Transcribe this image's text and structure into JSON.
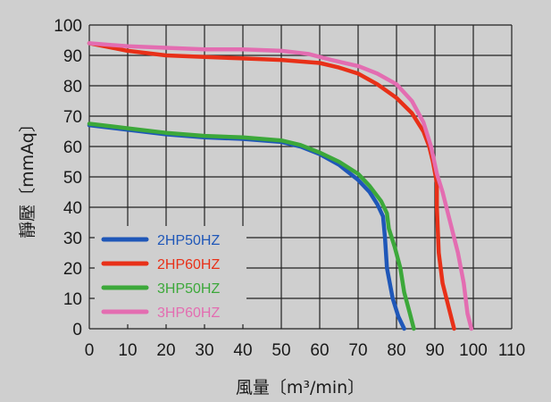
{
  "chart_data": {
    "type": "line",
    "title": "",
    "xlabel": "風量〔m³/min〕",
    "ylabel": "靜壓〔mmAq〕",
    "xlim": [
      0,
      110
    ],
    "ylim": [
      0,
      100
    ],
    "x_ticks": [
      "0",
      "10",
      "20",
      "30",
      "40",
      "50",
      "60",
      "70",
      "80",
      "90",
      "100",
      "110"
    ],
    "y_ticks": [
      "0",
      "10",
      "20",
      "30",
      "40",
      "50",
      "60",
      "70",
      "80",
      "90",
      "100"
    ],
    "grid": true,
    "legend_position": "bottom-left",
    "series": [
      {
        "name": "2HP50HZ",
        "color": "#1f57b8",
        "points": [
          [
            0,
            67
          ],
          [
            10,
            65.5
          ],
          [
            20,
            64
          ],
          [
            30,
            63
          ],
          [
            40,
            62.5
          ],
          [
            50,
            61.5
          ],
          [
            55,
            60
          ],
          [
            60,
            57.5
          ],
          [
            65,
            54
          ],
          [
            70,
            49
          ],
          [
            73,
            45
          ],
          [
            75,
            41
          ],
          [
            76.5,
            37
          ],
          [
            77,
            30
          ],
          [
            77.5,
            20
          ],
          [
            79,
            10
          ],
          [
            80.5,
            4
          ],
          [
            82,
            0
          ]
        ]
      },
      {
        "name": "2HP60HZ",
        "color": "#e83018",
        "points": [
          [
            0,
            94
          ],
          [
            10,
            91.5
          ],
          [
            20,
            90
          ],
          [
            30,
            89.5
          ],
          [
            40,
            89
          ],
          [
            50,
            88.5
          ],
          [
            60,
            87.5
          ],
          [
            65,
            86
          ],
          [
            70,
            84
          ],
          [
            75,
            80.5
          ],
          [
            80,
            76
          ],
          [
            84,
            71
          ],
          [
            87,
            65
          ],
          [
            88.5,
            60
          ],
          [
            89.5,
            55
          ],
          [
            90.5,
            48
          ],
          [
            90.5,
            40
          ],
          [
            91,
            25
          ],
          [
            92,
            15
          ],
          [
            94,
            5
          ],
          [
            95,
            0
          ]
        ]
      },
      {
        "name": "3HP50HZ",
        "color": "#3ca83a",
        "points": [
          [
            0,
            67.5
          ],
          [
            10,
            66
          ],
          [
            20,
            64.5
          ],
          [
            30,
            63.5
          ],
          [
            40,
            63
          ],
          [
            50,
            62
          ],
          [
            55,
            60.5
          ],
          [
            60,
            58
          ],
          [
            65,
            55
          ],
          [
            70,
            51
          ],
          [
            73,
            47
          ],
          [
            76,
            42
          ],
          [
            77.5,
            38
          ],
          [
            78,
            33
          ],
          [
            79.5,
            27
          ],
          [
            81,
            20
          ],
          [
            82,
            12
          ],
          [
            83.5,
            5
          ],
          [
            84.5,
            0
          ]
        ]
      },
      {
        "name": "3HP60HZ",
        "color": "#e36db1",
        "points": [
          [
            0,
            94
          ],
          [
            10,
            93
          ],
          [
            20,
            92.5
          ],
          [
            30,
            92
          ],
          [
            40,
            92
          ],
          [
            50,
            91.5
          ],
          [
            57,
            90.5
          ],
          [
            63,
            88.5
          ],
          [
            70,
            86.5
          ],
          [
            75,
            84
          ],
          [
            80,
            80.5
          ],
          [
            84,
            75
          ],
          [
            87,
            68
          ],
          [
            89,
            60
          ],
          [
            90.5,
            51
          ],
          [
            92,
            45
          ],
          [
            94,
            35
          ],
          [
            96,
            25
          ],
          [
            97.5,
            15
          ],
          [
            98.5,
            5
          ],
          [
            99.5,
            0
          ]
        ]
      }
    ]
  }
}
